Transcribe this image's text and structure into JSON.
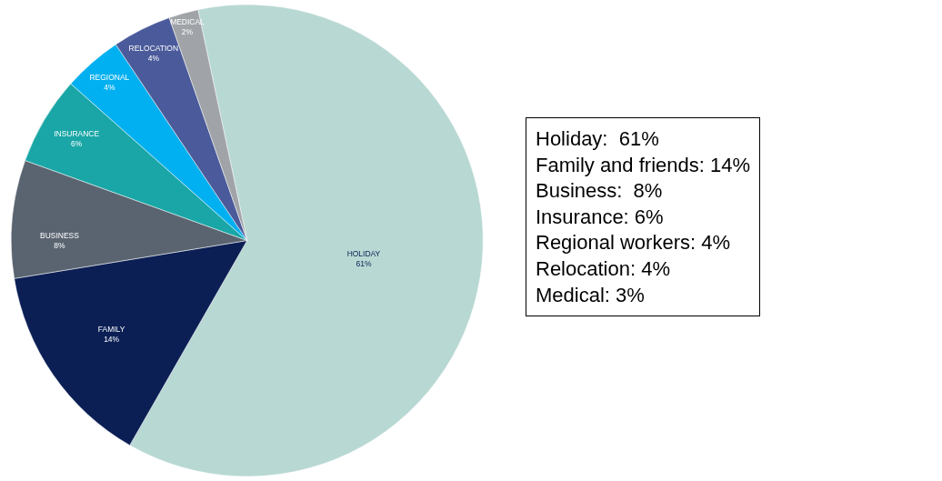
{
  "chart_data": {
    "type": "pie",
    "categories": [
      "HOLIDAY",
      "FAMILY",
      "BUSINESS",
      "INSURANCE",
      "REGIONAL",
      "RELOCATION",
      "MEDICAL"
    ],
    "values": [
      61,
      14,
      8,
      6,
      4,
      4,
      2
    ],
    "value_labels": [
      "61%",
      "14%",
      "8%",
      "6%",
      "4%",
      "4%",
      "2%"
    ],
    "colors": [
      "#b8d8d3",
      "#0b1f55",
      "#5a6470",
      "#1aa6a6",
      "#00b0f0",
      "#4a5a9a",
      "#a0a4a8"
    ],
    "legend": false,
    "annotations": [
      "Holiday:  61%\nFamily and friends: 14%\nBusiness:  8%\nInsurance: 6%\nRegional workers: 4%\nRelocation: 4%\nMedical: 3%"
    ]
  }
}
